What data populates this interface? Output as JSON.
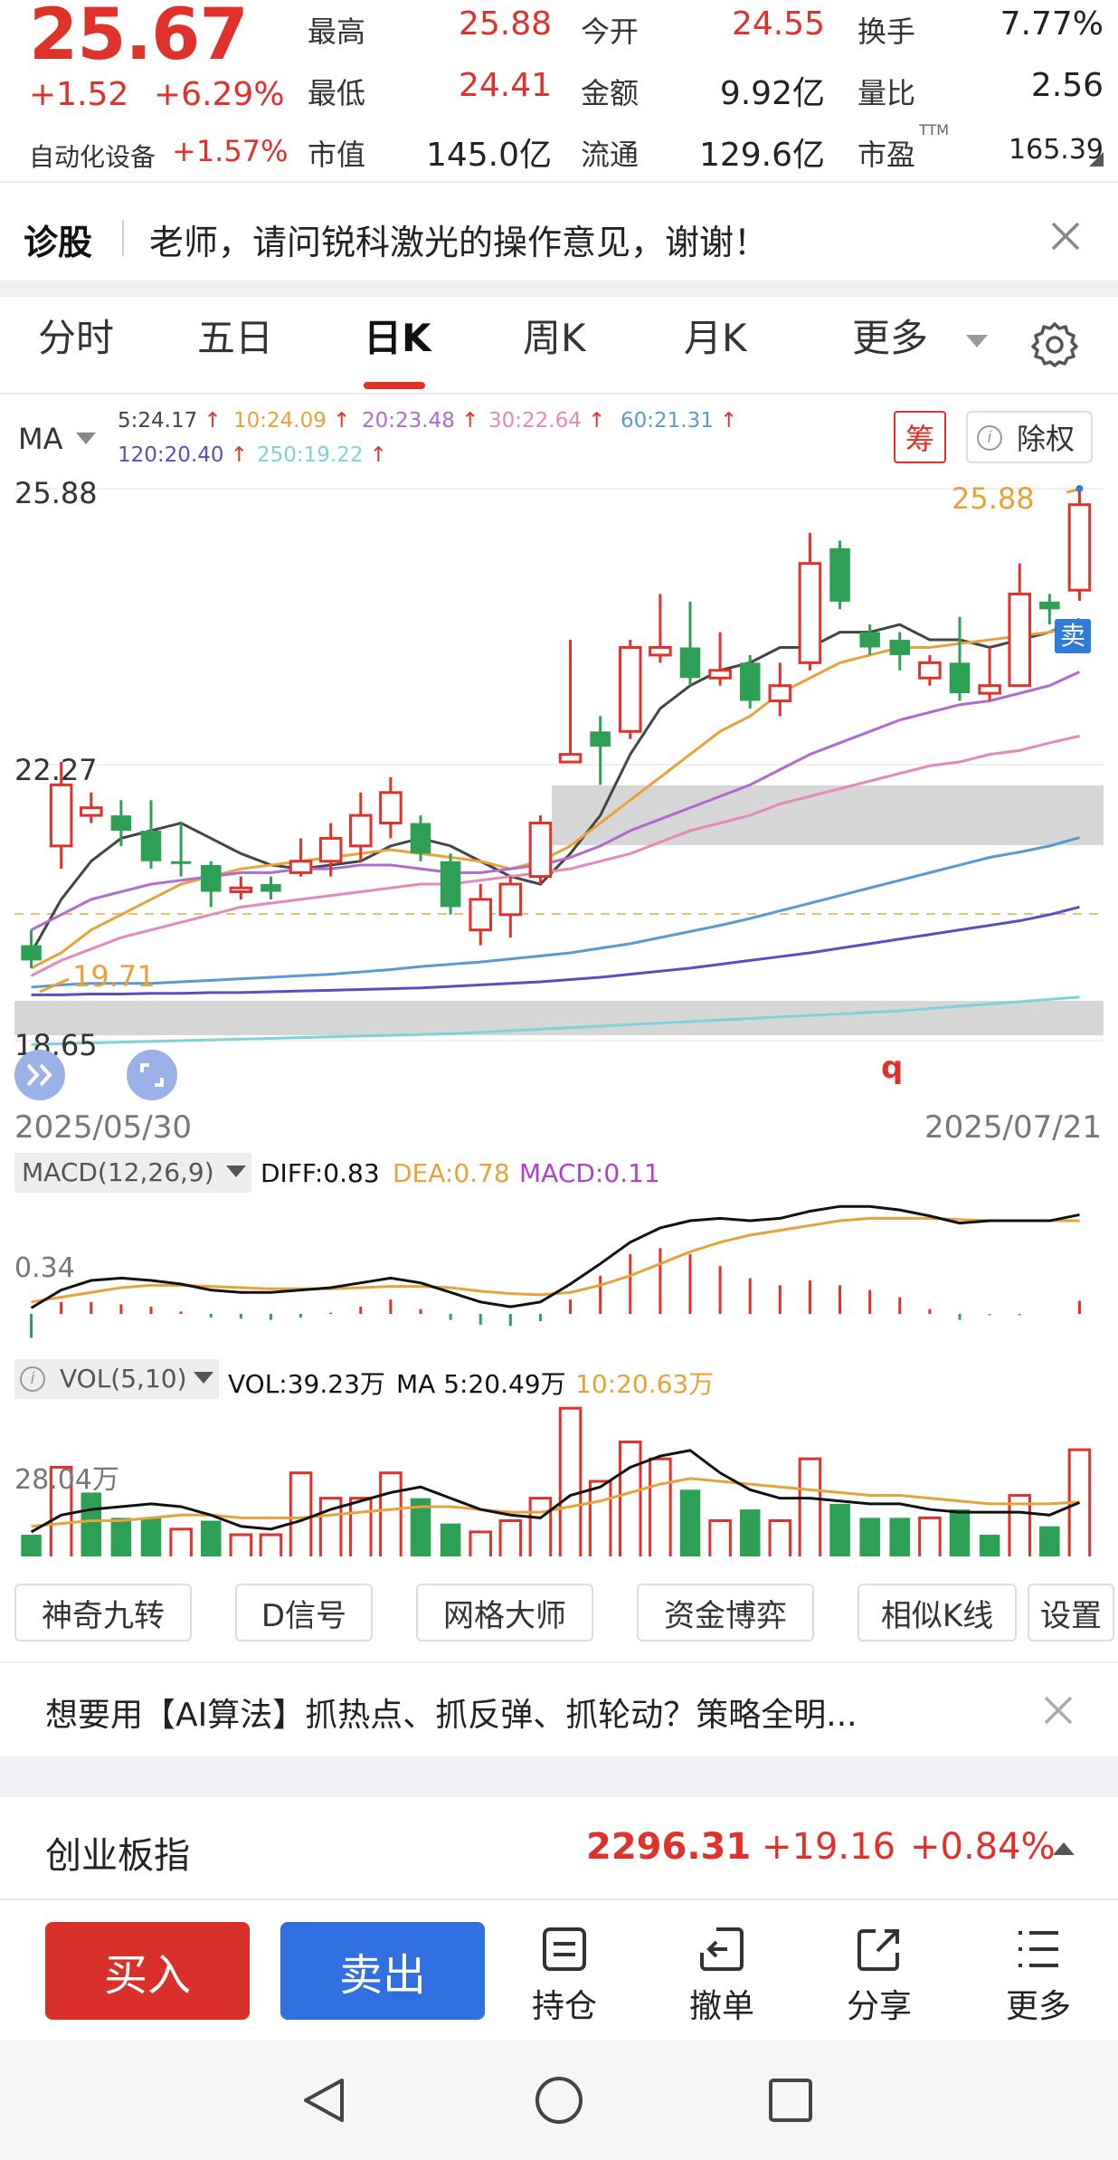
{
  "quote": {
    "price": "25.67",
    "change": "+1.52",
    "change_pct": "+6.29%",
    "sector": "自动化设备",
    "sector_pct": "+1.57%",
    "fields": [
      {
        "label": "最高",
        "value": "25.88",
        "color": "red"
      },
      {
        "label": "今开",
        "value": "24.55",
        "color": "red"
      },
      {
        "label": "换手",
        "value": "7.77%",
        "color": "dark"
      },
      {
        "label": "最低",
        "value": "24.41",
        "color": "red"
      },
      {
        "label": "金额",
        "value": "9.92亿",
        "color": "dark"
      },
      {
        "label": "量比",
        "value": "2.56",
        "color": "dark"
      },
      {
        "label": "市值",
        "value": "145.0亿",
        "color": "dark"
      },
      {
        "label": "流通",
        "value": "129.6亿",
        "color": "dark"
      },
      {
        "label": "市盈",
        "value": "165.39",
        "color": "dark"
      }
    ],
    "pe_sup": "TTM"
  },
  "diagnose": {
    "label": "诊股",
    "text": "老师，请问锐科激光的操作意见，谢谢！"
  },
  "tabs": [
    "分时",
    "五日",
    "日K",
    "周K",
    "月K",
    "更多"
  ],
  "active_tab": "日K",
  "ma_legend": {
    "selector": "MA",
    "items": [
      {
        "text": "5:24.17",
        "color": "#444444"
      },
      {
        "text": "10:24.09",
        "color": "#e8a23a"
      },
      {
        "text": "20:23.48",
        "color": "#b06ad0"
      },
      {
        "text": "30:22.64",
        "color": "#e48ab8"
      },
      {
        "text": "60:21.31",
        "color": "#5a9ad0"
      },
      {
        "text": "120:20.40",
        "color": "#5a4ec0"
      },
      {
        "text": "250:19.22",
        "color": "#7fd0d8"
      }
    ],
    "chip_button": "筹",
    "adjust_button": "除权"
  },
  "kline": {
    "y_top": "25.88",
    "y_mid": "22.27",
    "y_bottom": "18.65",
    "max_label": "25.88",
    "min_label": "19.71",
    "sell_tag": "卖",
    "q_mark": "q",
    "date_start": "2025/05/30",
    "date_end": "2025/07/21"
  },
  "macd": {
    "title": "MACD(12,26,9)",
    "diff": "DIFF:0.83",
    "dea": "DEA:0.78",
    "macd": "MACD:0.11",
    "axis": "0.34"
  },
  "vol": {
    "title": "VOL(5,10)",
    "vol": "VOL:39.23万",
    "ma5": "MA 5:20.49万",
    "ma10": "10:20.63万",
    "axis": "28.04万"
  },
  "strategy_buttons": [
    "神奇九转",
    "D信号",
    "网格大师",
    "资金博弈",
    "相似K线",
    "设置"
  ],
  "ad_text": "想要用【AI算法】抓热点、抓反弹、抓轮动？策略全明...",
  "index": {
    "name": "创业板指",
    "value": "2296.31",
    "change": "+19.16",
    "pct": "+0.84%"
  },
  "actions": {
    "buy": "买入",
    "sell": "卖出",
    "items": [
      "持仓",
      "撤单",
      "分享",
      "更多"
    ]
  },
  "chart_data": {
    "type": "candlestick",
    "date_start": "2025/05/30",
    "date_end": "2025/07/21",
    "ylim": [
      18.65,
      25.88
    ],
    "candles": [
      {
        "o": 19.7,
        "c": 19.9,
        "h": 20.1,
        "l": 19.6,
        "dir": "down"
      },
      {
        "o": 21.2,
        "c": 22.0,
        "h": 22.3,
        "l": 20.9,
        "dir": "up"
      },
      {
        "o": 21.7,
        "c": 21.6,
        "h": 21.9,
        "l": 21.5,
        "dir": "up"
      },
      {
        "o": 21.6,
        "c": 21.4,
        "h": 21.8,
        "l": 21.2,
        "dir": "down"
      },
      {
        "o": 21.4,
        "c": 21.0,
        "h": 21.8,
        "l": 20.9,
        "dir": "down"
      },
      {
        "o": 21.0,
        "c": 21.0,
        "h": 21.5,
        "l": 20.8,
        "dir": "down"
      },
      {
        "o": 20.95,
        "c": 20.6,
        "h": 21.0,
        "l": 20.4,
        "dir": "down"
      },
      {
        "o": 20.65,
        "c": 20.6,
        "h": 20.8,
        "l": 20.5,
        "dir": "up"
      },
      {
        "o": 20.6,
        "c": 20.7,
        "h": 20.8,
        "l": 20.5,
        "dir": "down"
      },
      {
        "o": 20.85,
        "c": 21.0,
        "h": 21.3,
        "l": 20.8,
        "dir": "up"
      },
      {
        "o": 21.0,
        "c": 21.3,
        "h": 21.5,
        "l": 20.8,
        "dir": "up"
      },
      {
        "o": 21.2,
        "c": 21.6,
        "h": 21.9,
        "l": 21.0,
        "dir": "up"
      },
      {
        "o": 21.5,
        "c": 21.9,
        "h": 22.1,
        "l": 21.3,
        "dir": "up"
      },
      {
        "o": 21.5,
        "c": 21.1,
        "h": 21.6,
        "l": 21.0,
        "dir": "down"
      },
      {
        "o": 21.0,
        "c": 20.4,
        "h": 21.1,
        "l": 20.3,
        "dir": "down"
      },
      {
        "o": 20.1,
        "c": 20.5,
        "h": 20.7,
        "l": 19.9,
        "dir": "up"
      },
      {
        "o": 20.3,
        "c": 20.7,
        "h": 20.8,
        "l": 20.0,
        "dir": "up"
      },
      {
        "o": 20.8,
        "c": 21.5,
        "h": 21.6,
        "l": 20.7,
        "dir": "up"
      },
      {
        "o": 22.3,
        "c": 22.4,
        "h": 23.9,
        "l": 22.3,
        "dir": "up"
      },
      {
        "o": 22.7,
        "c": 22.5,
        "h": 22.9,
        "l": 22.0,
        "dir": "down"
      },
      {
        "o": 22.7,
        "c": 23.8,
        "h": 23.9,
        "l": 22.6,
        "dir": "up"
      },
      {
        "o": 23.7,
        "c": 23.8,
        "h": 24.5,
        "l": 23.6,
        "dir": "up"
      },
      {
        "o": 23.8,
        "c": 23.4,
        "h": 24.4,
        "l": 23.3,
        "dir": "down"
      },
      {
        "o": 23.4,
        "c": 23.5,
        "h": 24.0,
        "l": 23.3,
        "dir": "up"
      },
      {
        "o": 23.6,
        "c": 23.1,
        "h": 23.7,
        "l": 23.0,
        "dir": "down"
      },
      {
        "o": 23.1,
        "c": 23.3,
        "h": 23.6,
        "l": 22.9,
        "dir": "up"
      },
      {
        "o": 23.6,
        "c": 24.9,
        "h": 25.3,
        "l": 23.5,
        "dir": "up"
      },
      {
        "o": 25.1,
        "c": 24.4,
        "h": 25.2,
        "l": 24.3,
        "dir": "down"
      },
      {
        "o": 24.0,
        "c": 23.8,
        "h": 24.1,
        "l": 23.7,
        "dir": "down"
      },
      {
        "o": 23.9,
        "c": 23.7,
        "h": 24.0,
        "l": 23.5,
        "dir": "down"
      },
      {
        "o": 23.4,
        "c": 23.6,
        "h": 23.7,
        "l": 23.3,
        "dir": "up"
      },
      {
        "o": 23.6,
        "c": 23.2,
        "h": 24.2,
        "l": 23.1,
        "dir": "down"
      },
      {
        "o": 23.2,
        "c": 23.3,
        "h": 23.8,
        "l": 23.1,
        "dir": "up"
      },
      {
        "o": 23.3,
        "c": 24.5,
        "h": 24.9,
        "l": 23.3,
        "dir": "up"
      },
      {
        "o": 24.4,
        "c": 24.3,
        "h": 24.5,
        "l": 24.1,
        "dir": "down"
      },
      {
        "o": 24.55,
        "c": 25.67,
        "h": 25.88,
        "l": 24.41,
        "dir": "up"
      }
    ],
    "ma_lines": [
      {
        "name": "5",
        "color": "#444444",
        "values": [
          19.8,
          20.5,
          21.0,
          21.3,
          21.4,
          21.5,
          21.3,
          21.1,
          20.95,
          20.9,
          20.95,
          21.0,
          21.2,
          21.3,
          21.2,
          21.0,
          20.8,
          20.7,
          21.1,
          21.6,
          22.4,
          23.0,
          23.3,
          23.5,
          23.6,
          23.8,
          23.8,
          24.0,
          24.0,
          24.1,
          23.9,
          23.9,
          23.8,
          23.9,
          24.0,
          24.17
        ]
      },
      {
        "name": "10",
        "color": "#e8a23a",
        "values": [
          19.6,
          19.8,
          20.1,
          20.3,
          20.5,
          20.7,
          20.8,
          20.9,
          20.95,
          21.0,
          21.05,
          21.1,
          21.15,
          21.1,
          21.05,
          21.0,
          20.9,
          21.0,
          21.2,
          21.5,
          21.8,
          22.1,
          22.4,
          22.7,
          22.9,
          23.2,
          23.4,
          23.6,
          23.7,
          23.8,
          23.8,
          23.85,
          23.9,
          23.95,
          24.0,
          24.09
        ]
      },
      {
        "name": "20",
        "color": "#b06ad0",
        "values": [
          20.1,
          20.3,
          20.5,
          20.6,
          20.7,
          20.75,
          20.8,
          20.85,
          20.85,
          20.9,
          20.9,
          20.95,
          20.95,
          20.9,
          20.85,
          20.85,
          20.9,
          20.95,
          21.05,
          21.2,
          21.4,
          21.55,
          21.7,
          21.85,
          22.0,
          22.2,
          22.4,
          22.55,
          22.7,
          22.85,
          22.95,
          23.05,
          23.1,
          23.2,
          23.3,
          23.48
        ]
      },
      {
        "name": "30",
        "color": "#e48ab8",
        "values": [
          19.5,
          19.7,
          19.85,
          20.0,
          20.1,
          20.2,
          20.3,
          20.4,
          20.45,
          20.5,
          20.55,
          20.6,
          20.65,
          20.7,
          20.7,
          20.75,
          20.8,
          20.85,
          20.9,
          21.0,
          21.1,
          21.25,
          21.4,
          21.5,
          21.6,
          21.75,
          21.85,
          21.95,
          22.05,
          22.15,
          22.25,
          22.3,
          22.4,
          22.45,
          22.55,
          22.64
        ]
      },
      {
        "name": "60",
        "color": "#5a9ad0",
        "values": [
          19.35,
          19.38,
          19.4,
          19.4,
          19.4,
          19.42,
          19.44,
          19.46,
          19.48,
          19.5,
          19.52,
          19.55,
          19.58,
          19.62,
          19.65,
          19.68,
          19.72,
          19.76,
          19.8,
          19.86,
          19.92,
          20.0,
          20.08,
          20.16,
          20.25,
          20.35,
          20.45,
          20.55,
          20.65,
          20.75,
          20.85,
          20.95,
          21.05,
          21.12,
          21.2,
          21.31
        ]
      },
      {
        "name": "120",
        "color": "#5a4ec0",
        "values": [
          19.25,
          19.25,
          19.26,
          19.26,
          19.27,
          19.27,
          19.28,
          19.28,
          19.29,
          19.3,
          19.31,
          19.32,
          19.33,
          19.34,
          19.36,
          19.38,
          19.4,
          19.42,
          19.45,
          19.48,
          19.52,
          19.56,
          19.6,
          19.65,
          19.7,
          19.75,
          19.8,
          19.86,
          19.92,
          19.98,
          20.04,
          20.1,
          20.16,
          20.22,
          20.3,
          20.4
        ]
      },
      {
        "name": "250",
        "color": "#7fd0d8",
        "values": [
          18.6,
          18.61,
          18.62,
          18.63,
          18.64,
          18.65,
          18.66,
          18.67,
          18.68,
          18.69,
          18.7,
          18.71,
          18.72,
          18.73,
          18.74,
          18.76,
          18.78,
          18.8,
          18.82,
          18.84,
          18.86,
          18.88,
          18.9,
          18.92,
          18.94,
          18.96,
          18.98,
          19.0,
          19.02,
          19.04,
          19.07,
          19.1,
          19.13,
          19.16,
          19.19,
          19.22
        ]
      }
    ],
    "macd_diff": [
      0.05,
      0.2,
      0.28,
      0.3,
      0.28,
      0.25,
      0.2,
      0.18,
      0.18,
      0.2,
      0.22,
      0.26,
      0.3,
      0.26,
      0.18,
      0.1,
      0.06,
      0.1,
      0.25,
      0.42,
      0.6,
      0.72,
      0.78,
      0.8,
      0.78,
      0.8,
      0.86,
      0.9,
      0.9,
      0.87,
      0.82,
      0.76,
      0.78,
      0.78,
      0.78,
      0.83
    ],
    "macd_dea": [
      0.1,
      0.14,
      0.18,
      0.22,
      0.24,
      0.24,
      0.23,
      0.22,
      0.21,
      0.21,
      0.21,
      0.22,
      0.23,
      0.23,
      0.22,
      0.19,
      0.17,
      0.16,
      0.18,
      0.24,
      0.32,
      0.42,
      0.52,
      0.6,
      0.66,
      0.7,
      0.74,
      0.78,
      0.8,
      0.8,
      0.8,
      0.79,
      0.78,
      0.78,
      0.78,
      0.78
    ],
    "macd_hist": [
      -0.2,
      0.1,
      0.1,
      0.08,
      0.06,
      0.02,
      -0.03,
      -0.04,
      -0.05,
      -0.03,
      0.01,
      0.06,
      0.12,
      0.04,
      -0.05,
      -0.09,
      -0.1,
      -0.06,
      0.12,
      0.32,
      0.5,
      0.55,
      0.5,
      0.4,
      0.3,
      0.24,
      0.28,
      0.24,
      0.2,
      0.14,
      0.04,
      -0.05,
      -0.01,
      -0.01,
      0.0,
      0.11
    ],
    "volume": [
      {
        "v": 9,
        "dir": "down"
      },
      {
        "v": 33,
        "dir": "up"
      },
      {
        "v": 24,
        "dir": "down"
      },
      {
        "v": 15,
        "dir": "down"
      },
      {
        "v": 15,
        "dir": "down"
      },
      {
        "v": 11,
        "dir": "up"
      },
      {
        "v": 14,
        "dir": "down"
      },
      {
        "v": 9,
        "dir": "up"
      },
      {
        "v": 9,
        "dir": "up"
      },
      {
        "v": 31,
        "dir": "up"
      },
      {
        "v": 22,
        "dir": "up"
      },
      {
        "v": 22,
        "dir": "up"
      },
      {
        "v": 31,
        "dir": "up"
      },
      {
        "v": 22,
        "dir": "down"
      },
      {
        "v": 13,
        "dir": "down"
      },
      {
        "v": 10,
        "dir": "up"
      },
      {
        "v": 14,
        "dir": "up"
      },
      {
        "v": 22,
        "dir": "up"
      },
      {
        "v": 54,
        "dir": "up"
      },
      {
        "v": 28,
        "dir": "up"
      },
      {
        "v": 42,
        "dir": "up"
      },
      {
        "v": 36,
        "dir": "up"
      },
      {
        "v": 25,
        "dir": "down"
      },
      {
        "v": 14,
        "dir": "up"
      },
      {
        "v": 18,
        "dir": "down"
      },
      {
        "v": 14,
        "dir": "up"
      },
      {
        "v": 36,
        "dir": "up"
      },
      {
        "v": 20,
        "dir": "down"
      },
      {
        "v": 15,
        "dir": "down"
      },
      {
        "v": 15,
        "dir": "down"
      },
      {
        "v": 15,
        "dir": "up"
      },
      {
        "v": 18,
        "dir": "down"
      },
      {
        "v": 9,
        "dir": "down"
      },
      {
        "v": 23,
        "dir": "up"
      },
      {
        "v": 12,
        "dir": "down"
      },
      {
        "v": 39.23,
        "dir": "up"
      }
    ],
    "vol_ma5": [
      10,
      16,
      18,
      19,
      20,
      19,
      16,
      12,
      11,
      14,
      18,
      21,
      24,
      26,
      22,
      18,
      16,
      15,
      23,
      26,
      33,
      37,
      39,
      31,
      25,
      22,
      22,
      21,
      20,
      20,
      18,
      17,
      17,
      17,
      16,
      20.49
    ],
    "vol_ma10": [
      12,
      13,
      14,
      14,
      15,
      16,
      16,
      15,
      15,
      15,
      16,
      17,
      18,
      19,
      19,
      18,
      17,
      17,
      19,
      21,
      24,
      27,
      29,
      28,
      27,
      26,
      25,
      24,
      23,
      23,
      22,
      21,
      20,
      20,
      20,
      20.63
    ]
  }
}
